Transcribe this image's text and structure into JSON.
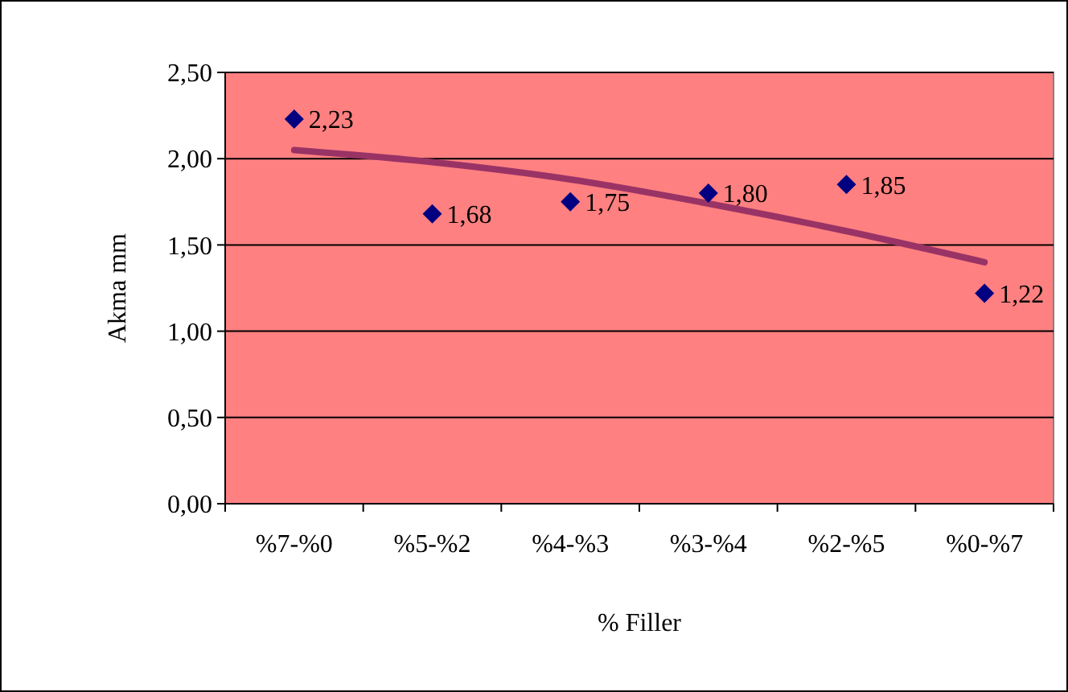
{
  "chart_data": {
    "type": "scatter",
    "xlabel": "% Filler",
    "ylabel": "Akma mm",
    "categories": [
      "%7-%0",
      "%5-%2",
      "%4-%3",
      "%3-%4",
      "%2-%5",
      "%0-%7"
    ],
    "series": [
      {
        "color": "#000080",
        "marker": "diamond",
        "values": [
          2.23,
          1.68,
          1.75,
          1.8,
          1.85,
          1.22
        ],
        "value_labels": [
          "2,23",
          "1,68",
          "1,75",
          "1,80",
          "1,85",
          "1,22"
        ]
      },
      {
        "type": "line",
        "color": "#993366",
        "marker": "none",
        "values": [
          2.05,
          1.98,
          1.88,
          1.74,
          1.58,
          1.4
        ]
      }
    ],
    "ylim": [
      0,
      2.5
    ],
    "yticks": [
      {
        "value": 0,
        "label": "0,00"
      },
      {
        "value": 0.5,
        "label": "0,50"
      },
      {
        "value": 1,
        "label": "1,00"
      },
      {
        "value": 1.5,
        "label": "1,50"
      },
      {
        "value": 2,
        "label": "2,00"
      },
      {
        "value": 2.5,
        "label": "2,50"
      }
    ],
    "grid": "y"
  }
}
